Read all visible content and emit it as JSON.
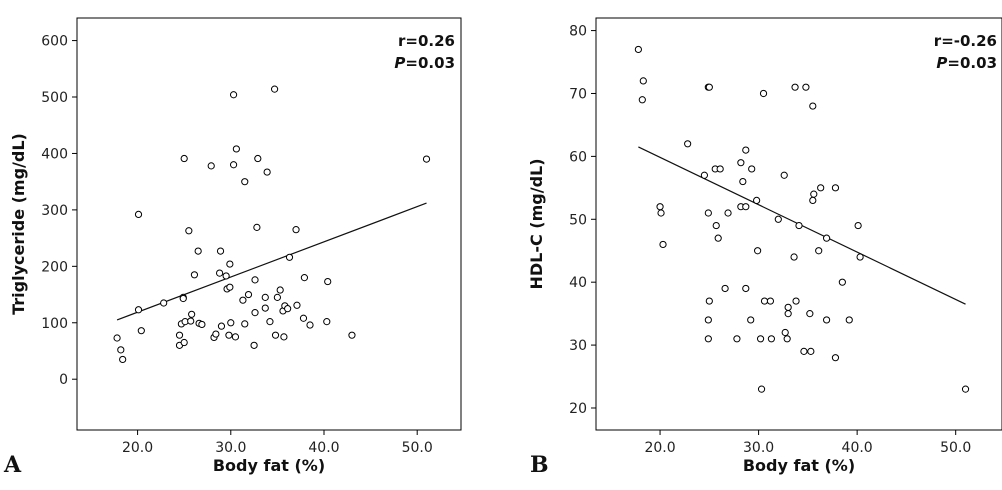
{
  "chart_data": [
    {
      "type": "scatter",
      "panel_label": "A",
      "xlabel": "Body fat (%)",
      "ylabel": "Triglyceride (mg/dL)",
      "xlim": [
        13.5,
        54.7
      ],
      "ylim": [
        -90,
        640
      ],
      "xticks": [
        20.0,
        30.0,
        40.0,
        50.0
      ],
      "xtick_labels": [
        "20.0",
        "30.0",
        "40.0",
        "50.0"
      ],
      "yticks": [
        0,
        100,
        200,
        300,
        400,
        500,
        600
      ],
      "ytick_labels": [
        "0",
        "100",
        "200",
        "300",
        "400",
        "500",
        "600"
      ],
      "annotation": {
        "r": "r=0.26",
        "p_letter": "P",
        "p_value": "=0.03"
      },
      "fit_line": {
        "x": [
          17.8,
          51.0
        ],
        "y": [
          105,
          312
        ]
      },
      "points": [
        {
          "x": 17.8,
          "y": 73
        },
        {
          "x": 18.2,
          "y": 52
        },
        {
          "x": 18.4,
          "y": 35
        },
        {
          "x": 20.1,
          "y": 292
        },
        {
          "x": 20.1,
          "y": 123
        },
        {
          "x": 20.4,
          "y": 86
        },
        {
          "x": 22.8,
          "y": 135
        },
        {
          "x": 24.5,
          "y": 60
        },
        {
          "x": 24.5,
          "y": 78
        },
        {
          "x": 24.7,
          "y": 98
        },
        {
          "x": 24.9,
          "y": 145
        },
        {
          "x": 24.9,
          "y": 143
        },
        {
          "x": 25.0,
          "y": 391
        },
        {
          "x": 25.0,
          "y": 65
        },
        {
          "x": 25.1,
          "y": 102
        },
        {
          "x": 25.5,
          "y": 263
        },
        {
          "x": 25.7,
          "y": 103
        },
        {
          "x": 25.8,
          "y": 115
        },
        {
          "x": 26.1,
          "y": 185
        },
        {
          "x": 26.5,
          "y": 227
        },
        {
          "x": 26.6,
          "y": 99
        },
        {
          "x": 26.9,
          "y": 97
        },
        {
          "x": 27.9,
          "y": 378
        },
        {
          "x": 28.2,
          "y": 74
        },
        {
          "x": 28.4,
          "y": 80
        },
        {
          "x": 28.8,
          "y": 188
        },
        {
          "x": 28.9,
          "y": 227
        },
        {
          "x": 29.0,
          "y": 94
        },
        {
          "x": 29.5,
          "y": 183
        },
        {
          "x": 29.6,
          "y": 160
        },
        {
          "x": 29.8,
          "y": 78
        },
        {
          "x": 29.9,
          "y": 204
        },
        {
          "x": 29.9,
          "y": 163
        },
        {
          "x": 30.0,
          "y": 100
        },
        {
          "x": 30.3,
          "y": 504
        },
        {
          "x": 30.3,
          "y": 380
        },
        {
          "x": 30.5,
          "y": 75
        },
        {
          "x": 30.6,
          "y": 408
        },
        {
          "x": 31.3,
          "y": 140
        },
        {
          "x": 31.5,
          "y": 350
        },
        {
          "x": 31.5,
          "y": 98
        },
        {
          "x": 31.9,
          "y": 150
        },
        {
          "x": 32.5,
          "y": 60
        },
        {
          "x": 32.6,
          "y": 176
        },
        {
          "x": 32.6,
          "y": 118
        },
        {
          "x": 32.8,
          "y": 269
        },
        {
          "x": 32.9,
          "y": 391
        },
        {
          "x": 33.7,
          "y": 145
        },
        {
          "x": 33.7,
          "y": 126
        },
        {
          "x": 33.9,
          "y": 367
        },
        {
          "x": 34.2,
          "y": 102
        },
        {
          "x": 34.7,
          "y": 514
        },
        {
          "x": 34.8,
          "y": 78
        },
        {
          "x": 35.0,
          "y": 145
        },
        {
          "x": 35.3,
          "y": 158
        },
        {
          "x": 35.6,
          "y": 121
        },
        {
          "x": 35.7,
          "y": 75
        },
        {
          "x": 35.8,
          "y": 130
        },
        {
          "x": 36.1,
          "y": 125
        },
        {
          "x": 36.3,
          "y": 216
        },
        {
          "x": 37.0,
          "y": 265
        },
        {
          "x": 37.1,
          "y": 131
        },
        {
          "x": 37.8,
          "y": 108
        },
        {
          "x": 37.9,
          "y": 180
        },
        {
          "x": 38.5,
          "y": 96
        },
        {
          "x": 40.3,
          "y": 102
        },
        {
          "x": 40.4,
          "y": 173
        },
        {
          "x": 43.0,
          "y": 78
        },
        {
          "x": 51.0,
          "y": 390
        }
      ]
    },
    {
      "type": "scatter",
      "panel_label": "B",
      "xlabel": "Body fat (%)",
      "ylabel": "HDL-C (mg/dL)",
      "xlim": [
        13.5,
        54.7
      ],
      "ylim": [
        16.5,
        82.0
      ],
      "xticks": [
        20.0,
        30.0,
        40.0,
        50.0
      ],
      "xtick_labels": [
        "20.0",
        "30.0",
        "40.0",
        "50.0"
      ],
      "yticks": [
        20,
        30,
        40,
        50,
        60,
        70,
        80
      ],
      "ytick_labels": [
        "20",
        "30",
        "40",
        "50",
        "60",
        "70",
        "80"
      ],
      "annotation": {
        "r": "r=-0.26",
        "p_letter": "P",
        "p_value": "=0.03"
      },
      "fit_line": {
        "x": [
          17.8,
          51.0
        ],
        "y": [
          61.5,
          36.5
        ]
      },
      "points": [
        {
          "x": 17.8,
          "y": 77
        },
        {
          "x": 18.3,
          "y": 72
        },
        {
          "x": 18.2,
          "y": 69
        },
        {
          "x": 20.0,
          "y": 52
        },
        {
          "x": 20.1,
          "y": 51
        },
        {
          "x": 20.3,
          "y": 46
        },
        {
          "x": 22.8,
          "y": 62
        },
        {
          "x": 24.5,
          "y": 57
        },
        {
          "x": 24.9,
          "y": 71
        },
        {
          "x": 25.0,
          "y": 71
        },
        {
          "x": 24.9,
          "y": 51
        },
        {
          "x": 25.0,
          "y": 37
        },
        {
          "x": 24.9,
          "y": 34
        },
        {
          "x": 24.9,
          "y": 31
        },
        {
          "x": 25.6,
          "y": 58
        },
        {
          "x": 25.7,
          "y": 49
        },
        {
          "x": 25.9,
          "y": 47
        },
        {
          "x": 26.1,
          "y": 58
        },
        {
          "x": 26.6,
          "y": 39
        },
        {
          "x": 26.9,
          "y": 51
        },
        {
          "x": 27.8,
          "y": 31
        },
        {
          "x": 28.2,
          "y": 59
        },
        {
          "x": 28.2,
          "y": 52
        },
        {
          "x": 28.4,
          "y": 56
        },
        {
          "x": 28.7,
          "y": 61
        },
        {
          "x": 28.7,
          "y": 52
        },
        {
          "x": 28.7,
          "y": 39
        },
        {
          "x": 29.2,
          "y": 34
        },
        {
          "x": 29.3,
          "y": 58
        },
        {
          "x": 29.8,
          "y": 53
        },
        {
          "x": 29.9,
          "y": 45
        },
        {
          "x": 30.2,
          "y": 31
        },
        {
          "x": 30.3,
          "y": 23
        },
        {
          "x": 30.5,
          "y": 70
        },
        {
          "x": 30.6,
          "y": 37
        },
        {
          "x": 31.2,
          "y": 37
        },
        {
          "x": 31.3,
          "y": 31
        },
        {
          "x": 32.0,
          "y": 50
        },
        {
          "x": 32.6,
          "y": 57
        },
        {
          "x": 32.7,
          "y": 32
        },
        {
          "x": 32.9,
          "y": 31
        },
        {
          "x": 33.0,
          "y": 36
        },
        {
          "x": 33.0,
          "y": 35
        },
        {
          "x": 33.6,
          "y": 44
        },
        {
          "x": 33.7,
          "y": 71
        },
        {
          "x": 33.8,
          "y": 37
        },
        {
          "x": 34.1,
          "y": 49
        },
        {
          "x": 34.6,
          "y": 29
        },
        {
          "x": 34.8,
          "y": 71
        },
        {
          "x": 35.2,
          "y": 35
        },
        {
          "x": 35.3,
          "y": 29
        },
        {
          "x": 35.5,
          "y": 68
        },
        {
          "x": 35.5,
          "y": 53
        },
        {
          "x": 35.6,
          "y": 54
        },
        {
          "x": 36.1,
          "y": 45
        },
        {
          "x": 36.3,
          "y": 55
        },
        {
          "x": 36.9,
          "y": 47
        },
        {
          "x": 36.9,
          "y": 34
        },
        {
          "x": 37.8,
          "y": 55
        },
        {
          "x": 37.8,
          "y": 28
        },
        {
          "x": 38.5,
          "y": 40
        },
        {
          "x": 39.2,
          "y": 34
        },
        {
          "x": 40.1,
          "y": 49
        },
        {
          "x": 40.3,
          "y": 44
        },
        {
          "x": 51.0,
          "y": 23
        }
      ]
    }
  ]
}
